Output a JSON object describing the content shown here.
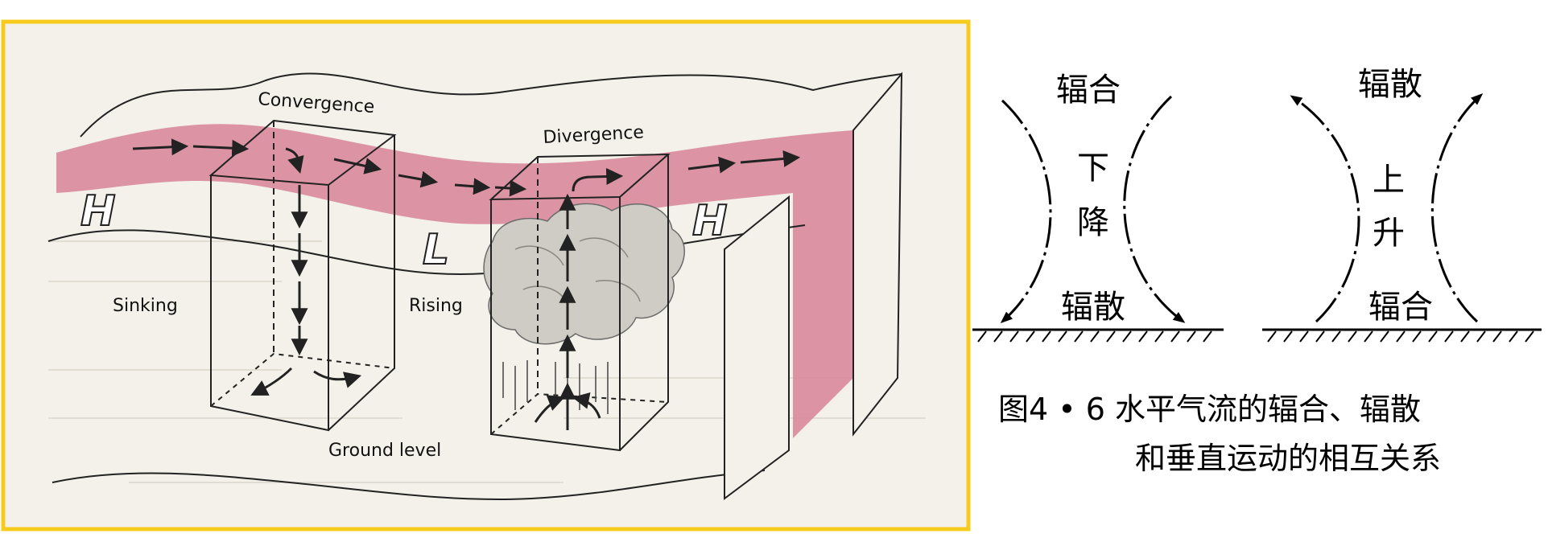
{
  "left_diagram": {
    "frame_color": "#f7cb1e",
    "paper_color": "#f3f1e9",
    "band_color": "#d98a9c",
    "labels": {
      "convergence": "Convergence",
      "divergence": "Divergence",
      "sinking": "Sinking",
      "rising": "Rising",
      "ground_level": "Ground level",
      "high_left": "H",
      "low": "L",
      "high_right": "H"
    }
  },
  "right_diagram": {
    "left_panel": {
      "top": "辐合",
      "middle_1": "下",
      "middle_2": "降",
      "bottom": "辐散"
    },
    "right_panel": {
      "top": "辐散",
      "middle_1": "上",
      "middle_2": "升",
      "bottom": "辐合"
    },
    "caption_line1": "图4 • 6  水平气流的辐合、辐散",
    "caption_line2": "和垂直运动的相互关系"
  }
}
